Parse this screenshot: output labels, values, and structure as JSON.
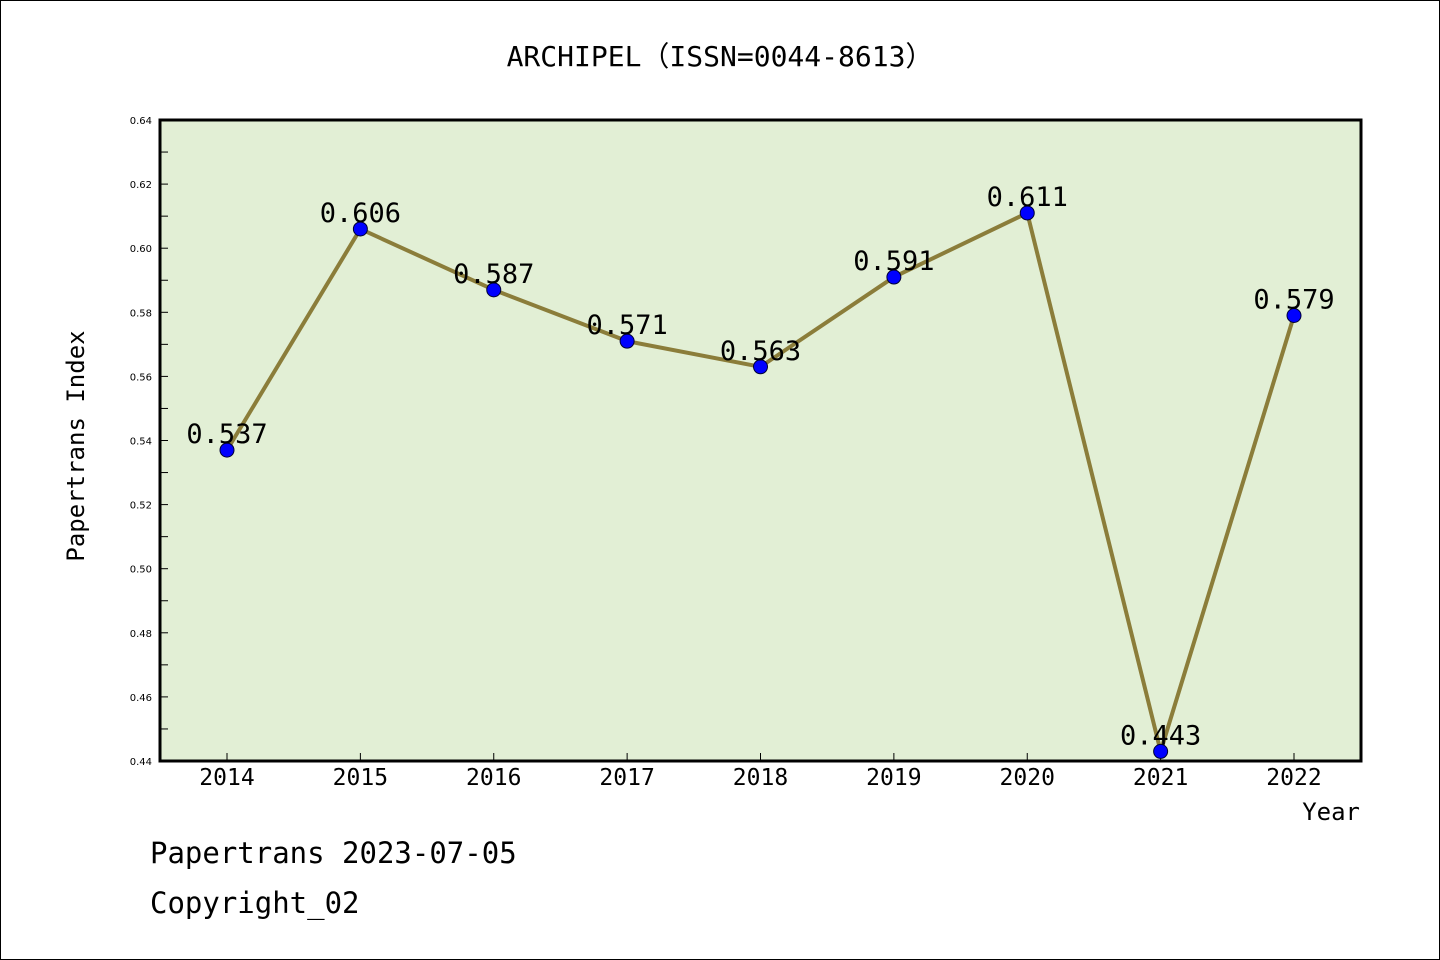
{
  "chart_data": {
    "type": "line",
    "title": "ARCHIPEL（ISSN=0044-8613）",
    "xlabel": "Year",
    "ylabel": "Papertrans Index",
    "categories": [
      "2014",
      "2015",
      "2016",
      "2017",
      "2018",
      "2019",
      "2020",
      "2021",
      "2022"
    ],
    "values": [
      0.537,
      0.606,
      0.587,
      0.571,
      0.563,
      0.591,
      0.611,
      0.443,
      0.579
    ],
    "value_labels": [
      "0.537",
      "0.606",
      "0.587",
      "0.571",
      "0.563",
      "0.591",
      "0.611",
      "0.443",
      "0.579"
    ],
    "ylim": [
      0.44,
      0.64
    ],
    "yticks": [
      "0.44",
      "0.46",
      "0.48",
      "0.50",
      "0.52",
      "0.54",
      "0.56",
      "0.58",
      "0.60",
      "0.62",
      "0.64"
    ],
    "grid": false,
    "colors": {
      "line": "#8b7d3a",
      "marker": "#0000ff",
      "plot_bg": "#e2efd5"
    }
  },
  "footer": {
    "line1": "Papertrans 2023-07-05",
    "line2": "Copyright_02"
  }
}
